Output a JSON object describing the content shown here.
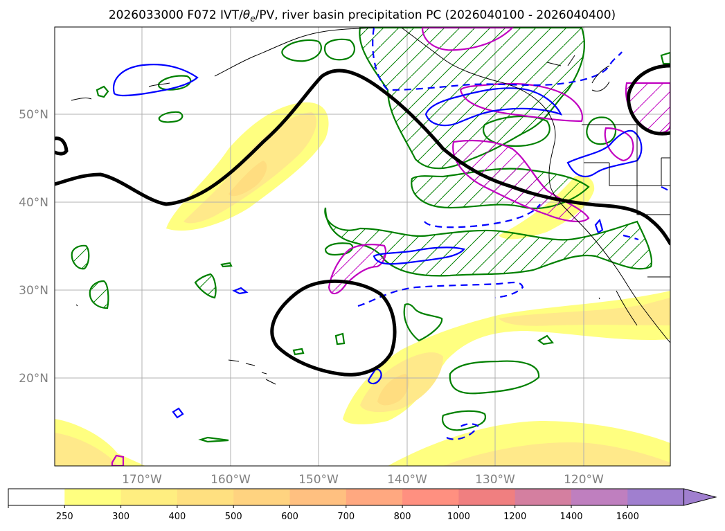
{
  "title": {
    "prefix": "2026033000 F072 IVT/",
    "theta": "θ",
    "theta_sub": "e",
    "suffix": "/PV, river basin precipitation PC (2026040100 - 2026040400)"
  },
  "lat_labels": [
    "50°N",
    "40°N",
    "30°N",
    "20°N"
  ],
  "lon_labels": [
    "170°W",
    "160°W",
    "150°W",
    "140°W",
    "130°W",
    "120°W"
  ],
  "colorbar": {
    "ticks": [
      "250",
      "300",
      "400",
      "500",
      "600",
      "700",
      "800",
      "1000",
      "1200",
      "1400",
      "1600"
    ],
    "colors": [
      "#ffffff",
      "#ffff80",
      "#ffee80",
      "#ffe080",
      "#ffd380",
      "#ffc080",
      "#ffa880",
      "#ff9080",
      "#f07f80",
      "#d47fa0",
      "#bf7fbf",
      "#a07fcf"
    ],
    "extend": "max"
  },
  "colors": {
    "pv_contour": "#000000",
    "theta_e_contour": "#0000ff",
    "precip_contour": "#008000",
    "pv_secondary": "#c000c0",
    "ivt_fill_light": "#ffff80",
    "ivt_fill_dark": "#ffe080",
    "coastline": "#000000",
    "gridline": "#b0b0b0"
  }
}
